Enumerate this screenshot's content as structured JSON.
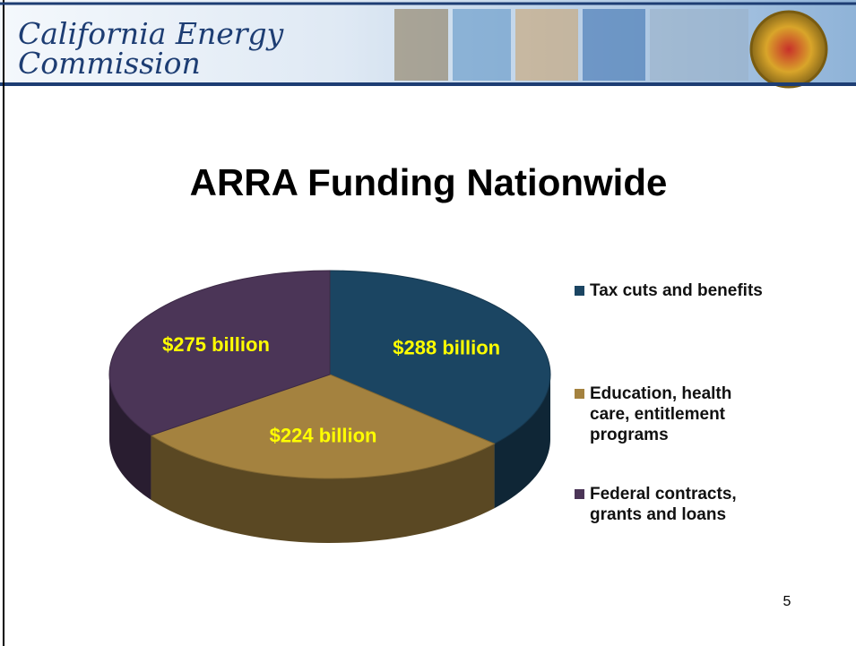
{
  "header": {
    "title_line1": "California Energy",
    "title_line2": "Commission"
  },
  "chart_data": {
    "type": "pie3d",
    "title": "ARRA Funding Nationwide",
    "series": [
      {
        "name": "Tax cuts and benefits",
        "color": "#1b4562",
        "values": [
          288
        ],
        "value_labels": [
          "$288 billion"
        ]
      },
      {
        "name": "Education, health care, entitlement programs",
        "color": "#a4823f",
        "values": [
          224
        ],
        "value_labels": [
          "$224 billion"
        ]
      },
      {
        "name": "Federal contracts, grants and loans",
        "color": "#4b3557",
        "values": [
          275
        ],
        "value_labels": [
          "$275 billion"
        ]
      }
    ],
    "legend": "right"
  },
  "page_number": 5
}
